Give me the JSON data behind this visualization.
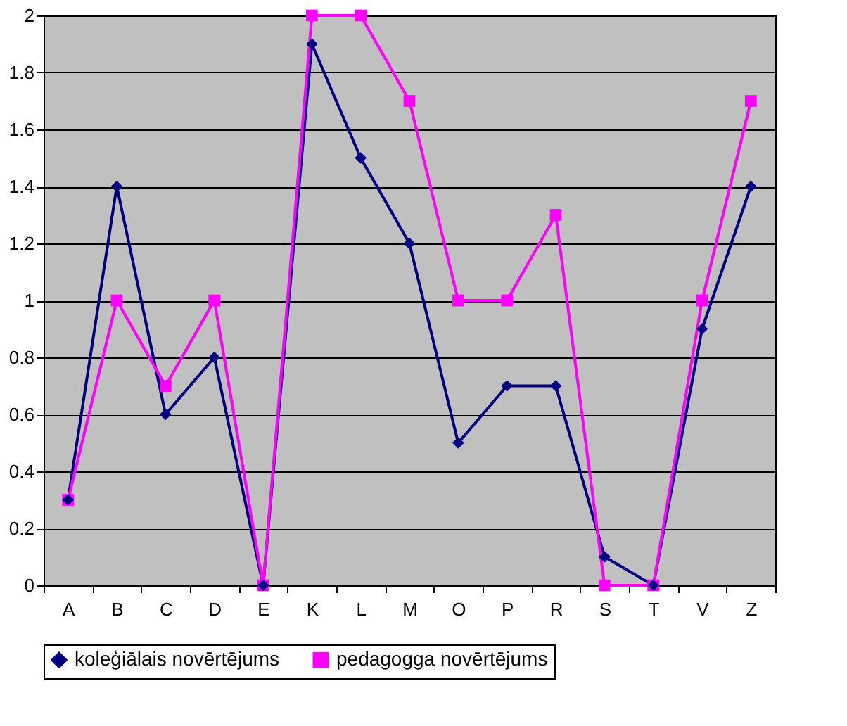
{
  "chart_data": {
    "type": "line",
    "categories": [
      "A",
      "B",
      "C",
      "D",
      "E",
      "K",
      "L",
      "M",
      "O",
      "P",
      "R",
      "S",
      "T",
      "V",
      "Z"
    ],
    "series": [
      {
        "name": "koleģiālais novērtējums",
        "color": "#000080",
        "marker": "diamond",
        "values": [
          0.3,
          1.4,
          0.6,
          0.8,
          0,
          1.9,
          1.5,
          1.2,
          0.5,
          0.7,
          0.7,
          0.1,
          0,
          0.9,
          1.4
        ]
      },
      {
        "name": "pedagogga novērtējums",
        "color": "#ff00ff",
        "marker": "square",
        "values": [
          0.3,
          1.0,
          0.7,
          1.0,
          0,
          2,
          2,
          1.7,
          1.0,
          1.0,
          1.3,
          0,
          0,
          1.0,
          1.7
        ]
      }
    ],
    "ylim": [
      0,
      2
    ],
    "yticks": [
      0,
      0.2,
      0.4,
      0.6,
      0.8,
      1,
      1.2,
      1.4,
      1.6,
      1.8,
      2
    ],
    "grid": "y",
    "legend": "bottom",
    "line_style": "solid"
  }
}
